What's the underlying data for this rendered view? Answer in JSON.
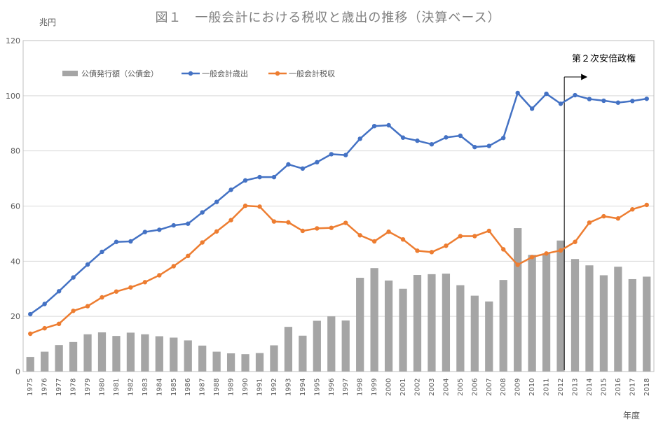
{
  "chart_data": {
    "type": "bar+line",
    "title": "図１　一般会計における税収と歳出の推移（決算ベース）",
    "ylabel": "兆円",
    "xlabel": "年度",
    "ylim": [
      0,
      120
    ],
    "yticks": [
      0,
      20,
      40,
      60,
      80,
      100,
      120
    ],
    "grid": true,
    "legend_position": "top-left",
    "annotation": "第２次安倍政権",
    "annotation_x": "2012",
    "categories": [
      "1975",
      "1976",
      "1977",
      "1978",
      "1979",
      "1980",
      "1981",
      "1982",
      "1983",
      "1984",
      "1985",
      "1986",
      "1987",
      "1988",
      "1989",
      "1990",
      "1991",
      "1992",
      "1993",
      "1994",
      "1995",
      "1996",
      "1997",
      "1998",
      "1999",
      "2000",
      "2001",
      "2002",
      "2003",
      "2004",
      "2005",
      "2006",
      "2007",
      "2008",
      "2009",
      "2010",
      "2011",
      "2012",
      "2013",
      "2014",
      "2015",
      "2016",
      "2017",
      "2018"
    ],
    "series": [
      {
        "name": "公債発行額（公債金）",
        "kind": "bar",
        "color": "#a5a5a5",
        "values": [
          5.3,
          7.2,
          9.6,
          10.7,
          13.5,
          14.2,
          12.9,
          14.1,
          13.5,
          12.8,
          12.3,
          11.3,
          9.4,
          7.2,
          6.6,
          6.3,
          6.7,
          9.5,
          16.2,
          13.0,
          18.4,
          20.0,
          18.5,
          34.0,
          37.5,
          33.0,
          30.0,
          35.0,
          35.3,
          35.5,
          31.3,
          27.5,
          25.4,
          33.2,
          52.0,
          42.3,
          42.8,
          47.5,
          40.8,
          38.5,
          34.9,
          38.0,
          33.5,
          34.4
        ]
      },
      {
        "name": "一般会計歳出",
        "kind": "line",
        "color": "#4472c4",
        "values": [
          20.8,
          24.5,
          29.1,
          34.1,
          38.8,
          43.4,
          47.0,
          47.2,
          50.6,
          51.4,
          53.0,
          53.6,
          57.7,
          61.5,
          65.9,
          69.3,
          70.5,
          70.5,
          75.1,
          73.6,
          75.9,
          78.8,
          78.5,
          84.4,
          89.0,
          89.3,
          84.8,
          83.7,
          82.4,
          84.9,
          85.5,
          81.4,
          81.8,
          84.7,
          101.0,
          95.3,
          100.7,
          97.1,
          100.2,
          98.8,
          98.2,
          97.5,
          98.1,
          98.9
        ]
      },
      {
        "name": "一般会計税収",
        "kind": "line",
        "color": "#ed7d31",
        "values": [
          13.7,
          15.7,
          17.3,
          22.0,
          23.7,
          26.9,
          29.0,
          30.5,
          32.4,
          34.9,
          38.2,
          41.9,
          46.8,
          50.8,
          54.9,
          60.1,
          59.8,
          54.4,
          54.1,
          51.0,
          51.9,
          52.1,
          53.9,
          49.4,
          47.2,
          50.7,
          47.9,
          43.8,
          43.3,
          45.6,
          49.1,
          49.1,
          51.0,
          44.3,
          38.7,
          41.5,
          42.8,
          43.9,
          47.0,
          54.0,
          56.3,
          55.5,
          58.8,
          60.4
        ]
      }
    ]
  }
}
